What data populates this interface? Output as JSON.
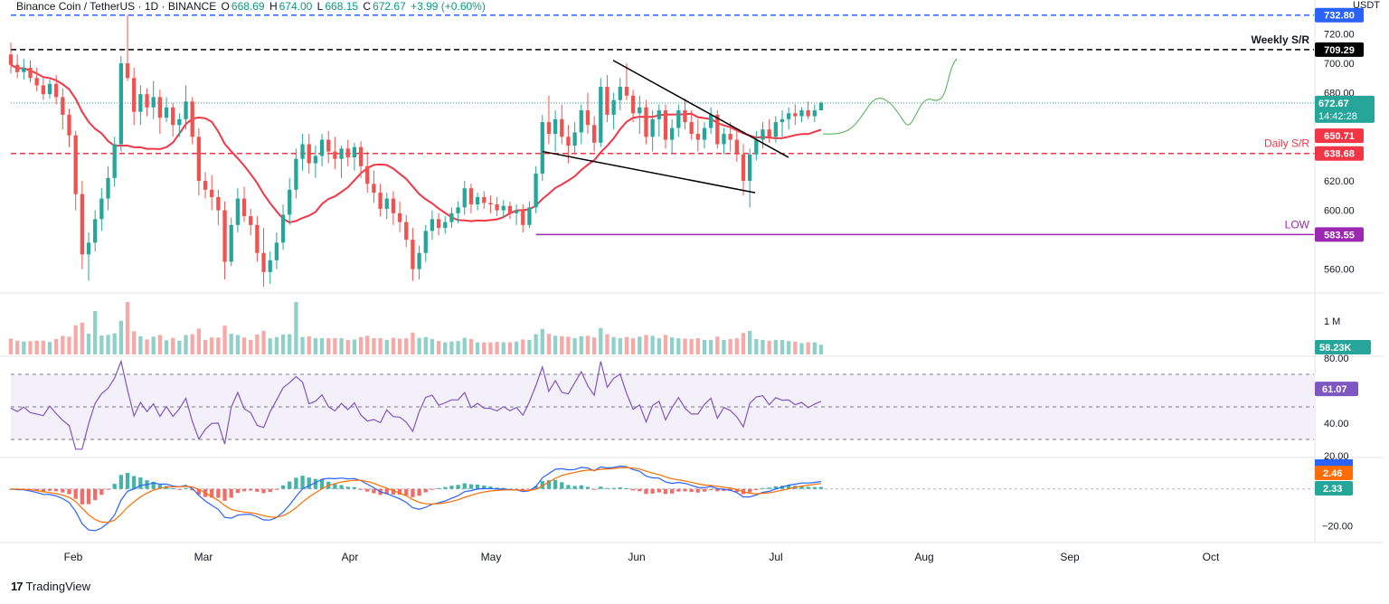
{
  "header": {
    "symbol": "Binance Coin / TetherUS · 1D · BINANCE",
    "o_label": "O",
    "o_val": "668.69",
    "h_label": "H",
    "h_val": "674.00",
    "l_label": "L",
    "l_val": "668.15",
    "c_label": "C",
    "c_val": "672.67",
    "change": "+3.99 (+0.60%)",
    "currency": "USDT"
  },
  "brand": {
    "name": "TradingView"
  },
  "colors": {
    "up": "#26a69a",
    "down": "#ef5350",
    "ma": "#f23645",
    "weekly": "#000000",
    "daily": "#f23645",
    "low": "#9c27b0",
    "blue": "#2962ff",
    "macd": "#2962ff",
    "signal": "#ff6d00",
    "rsi": "#7e57c2"
  },
  "chart_data": [
    {
      "type": "candlestick",
      "panel": "price",
      "x_labels": [
        "Feb",
        "Mar",
        "Apr",
        "May",
        "Jun",
        "Jul",
        "Aug",
        "Sep",
        "Oct"
      ],
      "y_ticks": [
        "720.00",
        "700.00",
        "680.00",
        "620.00",
        "600.00",
        "560.00"
      ],
      "ylim": [
        545,
        732
      ],
      "levels": [
        {
          "name": "top",
          "value": 732.8,
          "label": "",
          "tag": "732.80"
        },
        {
          "name": "weekly",
          "value": 709.29,
          "label": "Weekly S/R",
          "tag": "709.29"
        },
        {
          "name": "daily",
          "value": 638.68,
          "label": "Daily S/R",
          "tag": "638.68"
        },
        {
          "name": "low",
          "value": 583.55,
          "label": "LOW",
          "tag": "583.55"
        }
      ],
      "last_price": "672.67",
      "countdown": "14:42:28",
      "ma_value": "650.71",
      "ohlc": [
        [
          706,
          714,
          693,
          699
        ],
        [
          699,
          706,
          690,
          694
        ],
        [
          694,
          703,
          689,
          697
        ],
        [
          697,
          702,
          687,
          690
        ],
        [
          690,
          697,
          681,
          685
        ],
        [
          685,
          691,
          675,
          679
        ],
        [
          679,
          689,
          676,
          686
        ],
        [
          686,
          692,
          672,
          677
        ],
        [
          677,
          683,
          655,
          665
        ],
        [
          665,
          669,
          643,
          651
        ],
        [
          651,
          654,
          600,
          611
        ],
        [
          611,
          620,
          560,
          570
        ],
        [
          570,
          585,
          552,
          578
        ],
        [
          578,
          600,
          572,
          594
        ],
        [
          594,
          615,
          586,
          608
        ],
        [
          608,
          630,
          600,
          622
        ],
        [
          622,
          650,
          616,
          645
        ],
        [
          645,
          705,
          640,
          700
        ],
        [
          700,
          733,
          688,
          690
        ],
        [
          690,
          697,
          658,
          667
        ],
        [
          667,
          685,
          658,
          679
        ],
        [
          679,
          683,
          664,
          670
        ],
        [
          670,
          688,
          662,
          677
        ],
        [
          677,
          682,
          652,
          663
        ],
        [
          663,
          677,
          660,
          670
        ],
        [
          670,
          673,
          650,
          658
        ],
        [
          658,
          666,
          650,
          662
        ],
        [
          662,
          685,
          655,
          674
        ],
        [
          674,
          677,
          645,
          650
        ],
        [
          650,
          656,
          610,
          620
        ],
        [
          620,
          626,
          608,
          614
        ],
        [
          614,
          624,
          600,
          609
        ],
        [
          609,
          614,
          590,
          600
        ],
        [
          600,
          606,
          553,
          565
        ],
        [
          565,
          595,
          562,
          590
        ],
        [
          590,
          615,
          585,
          608
        ],
        [
          608,
          616,
          592,
          596
        ],
        [
          596,
          601,
          583,
          590
        ],
        [
          590,
          596,
          565,
          571
        ],
        [
          571,
          588,
          548,
          558
        ],
        [
          558,
          572,
          550,
          566
        ],
        [
          566,
          585,
          560,
          578
        ],
        [
          578,
          604,
          573,
          597
        ],
        [
          597,
          622,
          590,
          614
        ],
        [
          614,
          642,
          608,
          635
        ],
        [
          635,
          652,
          627,
          645
        ],
        [
          645,
          652,
          625,
          632
        ],
        [
          632,
          644,
          622,
          637
        ],
        [
          637,
          652,
          630,
          648
        ],
        [
          648,
          654,
          632,
          640
        ],
        [
          640,
          650,
          628,
          635
        ],
        [
          635,
          644,
          622,
          642
        ],
        [
          642,
          648,
          630,
          636
        ],
        [
          636,
          646,
          627,
          643
        ],
        [
          643,
          647,
          622,
          630
        ],
        [
          630,
          640,
          612,
          618
        ],
        [
          618,
          627,
          605,
          612
        ],
        [
          612,
          618,
          596,
          601
        ],
        [
          601,
          612,
          594,
          608
        ],
        [
          608,
          613,
          590,
          598
        ],
        [
          598,
          606,
          585,
          592
        ],
        [
          592,
          597,
          575,
          580
        ],
        [
          580,
          588,
          552,
          560
        ],
        [
          560,
          576,
          553,
          571
        ],
        [
          571,
          590,
          565,
          586
        ],
        [
          586,
          600,
          580,
          594
        ],
        [
          594,
          598,
          583,
          588
        ],
        [
          588,
          596,
          584,
          592
        ],
        [
          592,
          602,
          588,
          598
        ],
        [
          598,
          606,
          591,
          602
        ],
        [
          602,
          620,
          597,
          615
        ],
        [
          615,
          618,
          598,
          604
        ],
        [
          604,
          612,
          600,
          609
        ],
        [
          609,
          613,
          601,
          605
        ],
        [
          605,
          610,
          598,
          604
        ],
        [
          604,
          609,
          596,
          600
        ],
        [
          600,
          607,
          595,
          603
        ],
        [
          603,
          606,
          594,
          598
        ],
        [
          598,
          604,
          590,
          600
        ],
        [
          600,
          604,
          585,
          590
        ],
        [
          590,
          606,
          588,
          602
        ],
        [
          602,
          630,
          598,
          625
        ],
        [
          625,
          665,
          620,
          660
        ],
        [
          660,
          678,
          645,
          652
        ],
        [
          652,
          668,
          640,
          662
        ],
        [
          662,
          672,
          645,
          650
        ],
        [
          650,
          658,
          632,
          644
        ],
        [
          644,
          660,
          638,
          653
        ],
        [
          653,
          672,
          645,
          668
        ],
        [
          668,
          680,
          652,
          658
        ],
        [
          658,
          664,
          640,
          646
        ],
        [
          646,
          690,
          643,
          684
        ],
        [
          684,
          692,
          660,
          665
        ],
        [
          665,
          680,
          655,
          675
        ],
        [
          675,
          690,
          668,
          684
        ],
        [
          684,
          700,
          675,
          678
        ],
        [
          678,
          682,
          660,
          666
        ],
        [
          666,
          678,
          652,
          670
        ],
        [
          670,
          675,
          645,
          650
        ],
        [
          650,
          668,
          640,
          662
        ],
        [
          662,
          672,
          650,
          668
        ],
        [
          668,
          672,
          642,
          648
        ],
        [
          648,
          662,
          638,
          656
        ],
        [
          656,
          672,
          650,
          668
        ],
        [
          668,
          676,
          655,
          660
        ],
        [
          660,
          668,
          648,
          652
        ],
        [
          652,
          662,
          640,
          648
        ],
        [
          648,
          660,
          642,
          656
        ],
        [
          656,
          670,
          652,
          665
        ],
        [
          665,
          668,
          642,
          645
        ],
        [
          645,
          656,
          638,
          652
        ],
        [
          652,
          660,
          640,
          648
        ],
        [
          648,
          655,
          633,
          638
        ],
        [
          638,
          645,
          610,
          620
        ],
        [
          620,
          642,
          602,
          638
        ],
        [
          638,
          654,
          634,
          648
        ],
        [
          648,
          660,
          642,
          655
        ],
        [
          655,
          662,
          646,
          650
        ],
        [
          650,
          664,
          646,
          660
        ],
        [
          660,
          668,
          650,
          662
        ],
        [
          662,
          670,
          655,
          666
        ],
        [
          666,
          672,
          658,
          664
        ],
        [
          664,
          670,
          660,
          668
        ],
        [
          668,
          674,
          662,
          664
        ],
        [
          664,
          672,
          660,
          668
        ],
        [
          668,
          674,
          668,
          673
        ]
      ]
    },
    {
      "type": "bar",
      "panel": "volume",
      "y_ticks": [
        "1 M"
      ],
      "last": "58.23K"
    },
    {
      "type": "line",
      "panel": "rsi",
      "y_ticks": [
        "80.00",
        "40.00",
        "20.00"
      ],
      "bands": [
        70,
        50,
        30
      ],
      "ylim": [
        20,
        80
      ],
      "last": "61.07"
    },
    {
      "type": "line",
      "panel": "macd",
      "y_ticks": [
        "−20.00"
      ],
      "ylim": [
        -28,
        16
      ],
      "macd_last": "2.46",
      "signal_last": "2.33"
    }
  ]
}
